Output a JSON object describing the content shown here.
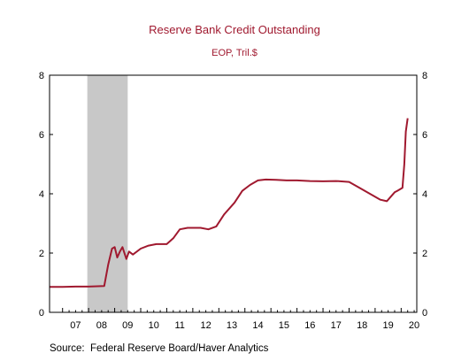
{
  "chart_data": {
    "type": "line",
    "title": "Reserve Bank Credit Outstanding",
    "subtitle": "EOP, Tril.$",
    "source": "Source:  Federal Reserve Board/Haver Analytics",
    "colors": {
      "line": "#a0192f",
      "title": "#a0192f",
      "recession": "#c8c8c8"
    },
    "xlim": [
      2006.5,
      2020.6
    ],
    "ylim": [
      0,
      8
    ],
    "yticks": [
      0,
      2,
      4,
      6,
      8
    ],
    "ytick_labels": [
      "0",
      "2",
      "4",
      "6",
      "8"
    ],
    "y2ticks": [
      0,
      2,
      4,
      6,
      8
    ],
    "y2tick_labels": [
      "0",
      "2",
      "4",
      "6",
      "8"
    ],
    "xtick_labels": [
      "07",
      "08",
      "09",
      "10",
      "11",
      "12",
      "13",
      "14",
      "15",
      "16",
      "17",
      "18",
      "19",
      "20"
    ],
    "xtick_positions": [
      2007,
      2008,
      2009,
      2010,
      2011,
      2012,
      2013,
      2014,
      2015,
      2016,
      2017,
      2018,
      2019,
      2020
    ],
    "recession": [
      2007.95,
      2009.5
    ],
    "grid": false,
    "series": [
      {
        "x": [
          2006.5,
          2007.0,
          2007.5,
          2008.0,
          2008.6,
          2008.75,
          2008.9,
          2009.0,
          2009.1,
          2009.2,
          2009.3,
          2009.45,
          2009.55,
          2009.7,
          2010.0,
          2010.3,
          2010.6,
          2011.0,
          2011.25,
          2011.5,
          2011.8,
          2012.0,
          2012.3,
          2012.6,
          2012.9,
          2013.2,
          2013.6,
          2013.9,
          2014.2,
          2014.5,
          2014.8,
          2015.2,
          2015.6,
          2016.0,
          2016.5,
          2017.0,
          2017.5,
          2018.0,
          2018.4,
          2018.8,
          2019.2,
          2019.45,
          2019.6,
          2019.75,
          2019.85,
          2019.95,
          2020.05,
          2020.12,
          2020.18,
          2020.25
        ],
        "y": [
          0.86,
          0.86,
          0.87,
          0.87,
          0.89,
          1.6,
          2.15,
          2.2,
          1.85,
          2.05,
          2.2,
          1.8,
          2.05,
          1.95,
          2.15,
          2.25,
          2.3,
          2.3,
          2.5,
          2.8,
          2.85,
          2.85,
          2.85,
          2.8,
          2.9,
          3.3,
          3.7,
          4.1,
          4.3,
          4.45,
          4.48,
          4.47,
          4.45,
          4.45,
          4.43,
          4.42,
          4.43,
          4.4,
          4.2,
          4.0,
          3.8,
          3.75,
          3.9,
          4.05,
          4.1,
          4.15,
          4.2,
          5.0,
          6.1,
          6.55
        ]
      }
    ]
  }
}
